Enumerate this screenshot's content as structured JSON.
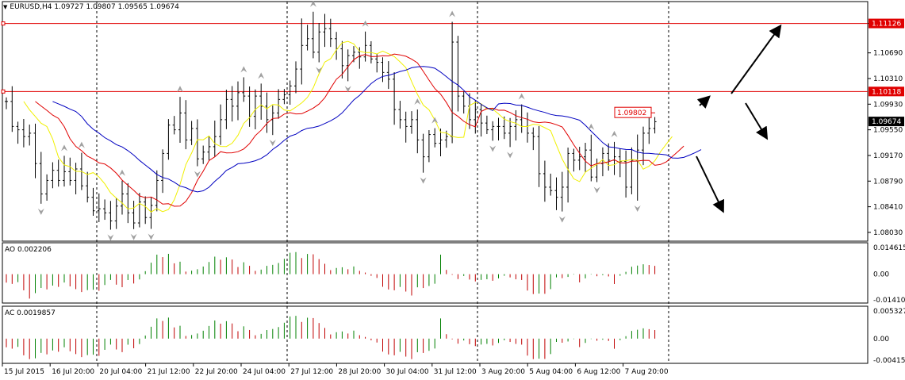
{
  "main_header": {
    "symbol": "EURUSD,H4",
    "open": "1.09727",
    "high": "1.09807",
    "low": "1.09565",
    "close": "1.09674"
  },
  "main_price_axis": [
    "1.11126",
    "1.10690",
    "1.10310",
    "1.09930",
    "1.09550",
    "1.09170",
    "1.08790",
    "1.08410",
    "1.08030"
  ],
  "h_lines": [
    {
      "price": 1.11126,
      "label": "1.11126"
    },
    {
      "price": 1.10118,
      "label": "1.10118"
    }
  ],
  "current_price": {
    "value": 1.09674,
    "label": "1.09674"
  },
  "price_callout": {
    "label": "1.09802",
    "price": 1.09802
  },
  "ao": {
    "label": "AO 0.002206",
    "ticks": [
      "0.014615",
      "0.00",
      "-0.014104"
    ],
    "max": 0.014615,
    "min": -0.014104
  },
  "ac": {
    "label": "AC 0.0019857",
    "ticks": [
      "0.005327",
      "0.00",
      "-0.004156"
    ],
    "max": 0.005327,
    "min": -0.004156
  },
  "time_axis": [
    "15 Jul 2015",
    "16 Jul 20:00",
    "20 Jul 04:00",
    "21 Jul 12:00",
    "22 Jul 20:00",
    "24 Jul 04:00",
    "27 Jul 12:00",
    "28 Jul 20:00",
    "30 Jul 04:00",
    "31 Jul 12:00",
    "3 Aug 20:00",
    "5 Aug 04:00",
    "6 Aug 12:00",
    "7 Aug 20:00"
  ],
  "colors": {
    "bars": "#000000",
    "h_line": "#e00000",
    "ma_fast": "#f0f000",
    "ma_mid": "#e00000",
    "ma_slow": "#0000c0",
    "ao_up": "#008000",
    "ao_down": "#c00000",
    "fractal": "#a0a0a0",
    "grid_separator": "#000000"
  },
  "chart_data": {
    "type": "ohlc",
    "symbol": "EURUSD",
    "timeframe": "H4",
    "close": [
      1.0997,
      1.096,
      1.0955,
      1.0945,
      1.095,
      1.0905,
      1.086,
      1.088,
      1.0895,
      1.088,
      1.0893,
      1.088,
      1.0897,
      1.0872,
      1.0855,
      1.0835,
      1.0838,
      1.0832,
      1.082,
      1.0842,
      1.086,
      1.0832,
      1.0817,
      1.0848,
      1.0825,
      1.0843,
      1.088,
      1.092,
      1.0962,
      1.0955,
      1.098,
      1.094,
      1.0957,
      1.0912,
      1.0922,
      1.093,
      1.0945,
      1.097,
      1.1,
      1.099,
      1.101,
      1.1005,
      1.0975,
      1.1005,
      1.099,
      1.097,
      1.098,
      1.1,
      1.1007,
      1.102,
      1.1045,
      1.108,
      1.109,
      1.107,
      1.11,
      1.1105,
      1.109,
      1.1075,
      1.105,
      1.1065,
      1.107,
      1.1063,
      1.108,
      1.106,
      1.1055,
      1.104,
      1.103,
      1.0985,
      1.097,
      1.096,
      1.097,
      1.094,
      1.0915,
      1.0948,
      1.0935,
      1.094,
      1.0945,
      1.1085,
      1.1005,
      1.099,
      1.097,
      1.0985,
      1.0965,
      1.0955,
      1.096,
      1.096,
      1.095,
      1.096,
      1.097,
      1.096,
      1.095,
      1.0945,
      1.089,
      1.087,
      1.0865,
      1.0855,
      1.087,
      1.092,
      1.091,
      1.0915,
      1.0925,
      1.0885,
      1.0905,
      1.092,
      1.091,
      1.0915,
      1.0908,
      1.087,
      1.091,
      1.0925,
      1.095,
      1.0957,
      1.0967
    ],
    "highs_marked": [
      1.1115,
      1.1135
    ],
    "series": [
      {
        "name": "MA fast",
        "color": "#f0f000"
      },
      {
        "name": "MA mid",
        "color": "#e00000"
      },
      {
        "name": "MA slow",
        "color": "#0000c0"
      }
    ],
    "ylim": [
      1.079,
      1.1145
    ]
  },
  "annotations": {
    "arrows": [
      {
        "from": [
          922,
          118
        ],
        "to": [
          983,
          34
        ]
      },
      {
        "from": [
          882,
          133
        ],
        "to": [
          893,
          123
        ]
      },
      {
        "from": [
          940,
          130
        ],
        "to": [
          966,
          173
        ]
      },
      {
        "from": [
          878,
          197
        ],
        "to": [
          911,
          265
        ]
      }
    ],
    "vlines": [
      122,
      362,
      602,
      843
    ]
  }
}
